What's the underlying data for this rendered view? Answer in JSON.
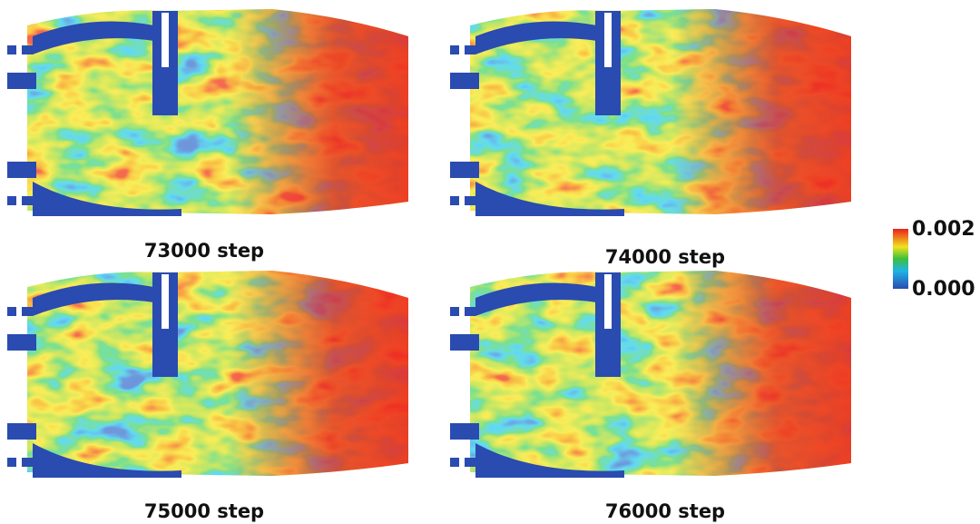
{
  "panels": [
    {
      "label": "73000 step"
    },
    {
      "label": "74000 step"
    },
    {
      "label": "75000 step"
    },
    {
      "label": "76000 step"
    }
  ],
  "colorbar": {
    "max_label": "0.002",
    "min_label": "0.000"
  }
}
